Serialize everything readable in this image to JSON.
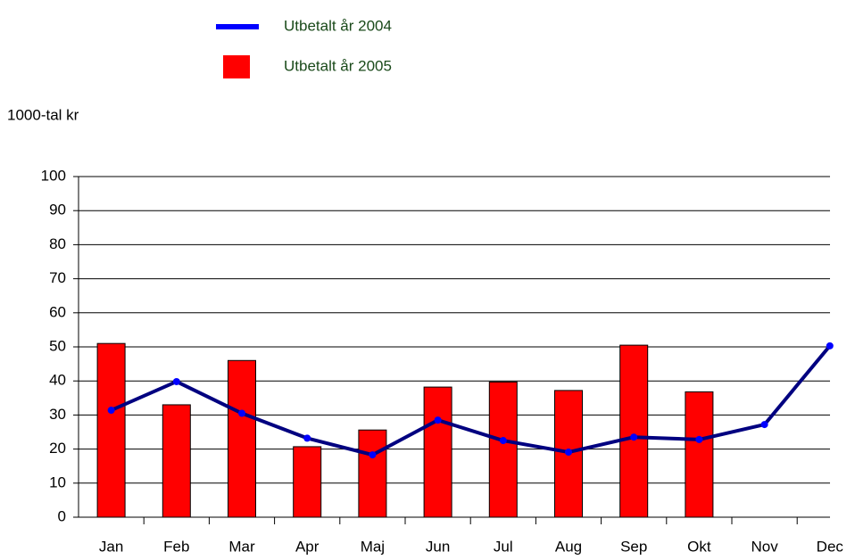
{
  "chart_data": {
    "type": "bar",
    "y_label": "1000-tal kr",
    "categories": [
      "Jan",
      "Feb",
      "Mar",
      "Apr",
      "Maj",
      "Jun",
      "Jul",
      "Aug",
      "Sep",
      "Okt",
      "Nov",
      "Dec"
    ],
    "series": [
      {
        "name": "Utbetalt år 2004",
        "type": "line",
        "color": "#000080",
        "marker_color": "#0000ff",
        "values": [
          31.4,
          39.8,
          30.5,
          23.2,
          18.3,
          28.5,
          22.5,
          19.1,
          23.5,
          22.8,
          27.2,
          50.3
        ]
      },
      {
        "name": "Utbetalt år 2005",
        "type": "bar",
        "color": "#ff0000",
        "values": [
          51,
          33,
          46,
          20.7,
          25.6,
          38.2,
          39.7,
          37.2,
          50.5,
          36.8,
          null,
          null
        ]
      }
    ],
    "ylim": [
      0,
      100
    ],
    "yticks": [
      0,
      10,
      20,
      30,
      40,
      50,
      60,
      70,
      80,
      90,
      100
    ],
    "grid": true
  }
}
